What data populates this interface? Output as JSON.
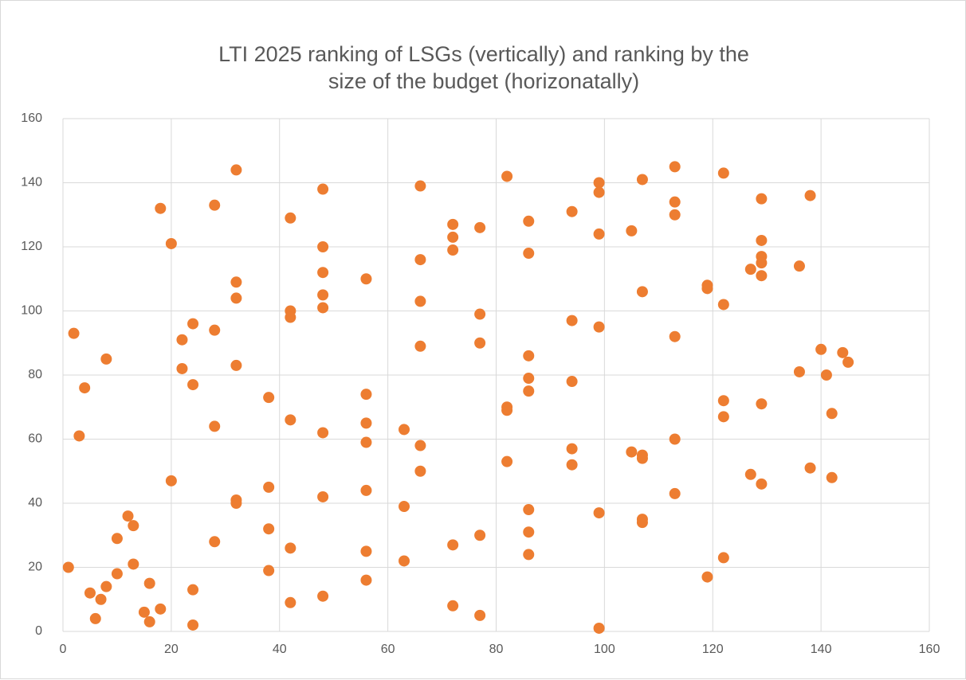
{
  "chart_data": {
    "type": "scatter",
    "title": "LTI 2025 ranking of LSGs (vertically) and ranking by the size of the budget (horizonatally)",
    "color": "#ed7d31",
    "grid": true,
    "xlim": [
      0,
      160
    ],
    "xticks": [
      0,
      20,
      40,
      60,
      80,
      100,
      120,
      140,
      160
    ],
    "ylim": [
      0,
      160
    ],
    "yticks": [
      0,
      20,
      40,
      60,
      80,
      100,
      120,
      140,
      160
    ],
    "x": [
      1,
      2,
      3,
      4,
      5,
      6,
      7,
      8,
      8,
      10,
      10,
      12,
      13,
      13,
      15,
      16,
      16,
      18,
      18,
      20,
      20,
      22,
      22,
      24,
      24,
      24,
      24,
      28,
      28,
      28,
      28,
      32,
      32,
      32,
      32,
      32,
      32,
      38,
      38,
      38,
      38,
      42,
      42,
      42,
      42,
      42,
      42,
      48,
      48,
      48,
      48,
      48,
      48,
      48,
      48,
      56,
      56,
      56,
      56,
      56,
      56,
      56,
      63,
      63,
      63,
      66,
      66,
      66,
      66,
      66,
      66,
      72,
      72,
      72,
      72,
      72,
      77,
      77,
      77,
      77,
      77,
      82,
      82,
      82,
      82,
      86,
      86,
      86,
      86,
      86,
      86,
      86,
      86,
      94,
      94,
      94,
      94,
      94,
      99,
      99,
      99,
      99,
      99,
      99,
      105,
      105,
      107,
      107,
      107,
      107,
      107,
      107,
      113,
      113,
      113,
      113,
      113,
      113,
      119,
      119,
      119,
      122,
      122,
      122,
      122,
      122,
      127,
      127,
      129,
      129,
      129,
      129,
      129,
      129,
      129,
      136,
      136,
      138,
      138,
      140,
      141,
      142,
      142,
      144,
      145
    ],
    "values": [
      20,
      93,
      61,
      76,
      12,
      4,
      10,
      14,
      85,
      29,
      18,
      36,
      33,
      21,
      6,
      3,
      15,
      7,
      132,
      121,
      47,
      91,
      82,
      96,
      77,
      13,
      2,
      133,
      94,
      64,
      28,
      144,
      109,
      104,
      83,
      41,
      40,
      73,
      45,
      32,
      19,
      129,
      100,
      98,
      66,
      26,
      9,
      138,
      120,
      112,
      105,
      101,
      62,
      42,
      11,
      110,
      74,
      65,
      59,
      44,
      25,
      16,
      63,
      39,
      22,
      139,
      116,
      103,
      89,
      58,
      50,
      127,
      123,
      119,
      27,
      8,
      126,
      99,
      90,
      30,
      5,
      142,
      70,
      69,
      53,
      128,
      118,
      86,
      79,
      75,
      38,
      31,
      24,
      131,
      97,
      78,
      57,
      52,
      140,
      137,
      124,
      95,
      37,
      1,
      125,
      56,
      141,
      106,
      55,
      54,
      35,
      34,
      145,
      134,
      130,
      92,
      60,
      43,
      108,
      107,
      17,
      143,
      102,
      72,
      67,
      23,
      113,
      49,
      135,
      122,
      117,
      115,
      111,
      71,
      46,
      114,
      81,
      136,
      51,
      88,
      80,
      68,
      48,
      87,
      84
    ]
  }
}
